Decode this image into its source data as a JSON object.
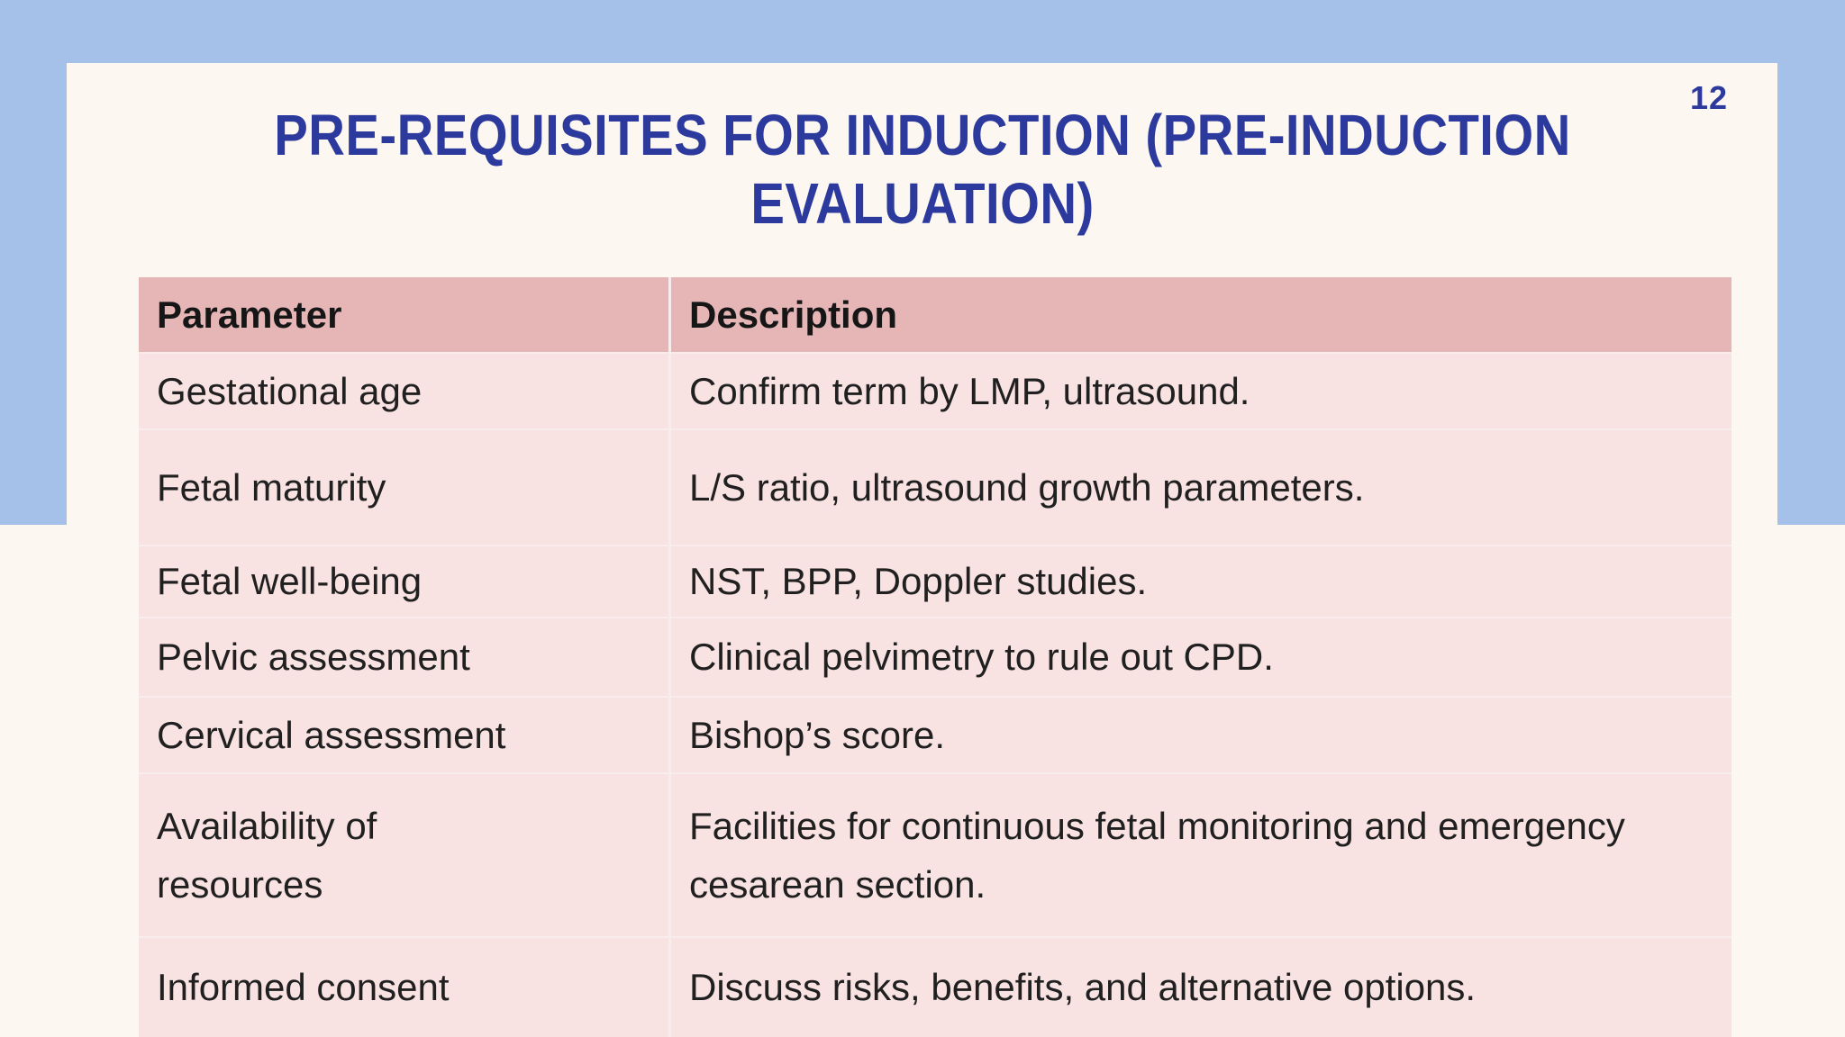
{
  "slide": {
    "page_number": "12",
    "title": {
      "line1": "PRE-REQUISITES FOR INDUCTION (PRE-INDUCTION",
      "line2": "EVALUATION)"
    }
  },
  "table": {
    "headers": {
      "parameter": "Parameter",
      "description": "Description"
    },
    "rows": [
      {
        "parameter": "Gestational age",
        "description": "Confirm term by LMP, ultrasound."
      },
      {
        "parameter": "Fetal maturity",
        "description": "L/S ratio, ultrasound growth parameters."
      },
      {
        "parameter": "Fetal well-being",
        "description": "NST, BPP, Doppler studies."
      },
      {
        "parameter": "Pelvic assessment",
        "description": "Clinical pelvimetry to rule out CPD."
      },
      {
        "parameter": "Cervical assessment",
        "description": "Bishop’s score."
      },
      {
        "parameter": "Availability of resources",
        "description": "Facilities for continuous fetal monitoring and emergency cesarean section."
      },
      {
        "parameter": "Informed consent",
        "description": "Discuss risks, benefits, and alternative options."
      }
    ]
  },
  "colors": {
    "frame_blue": "#a5c1ea",
    "page_cream": "#fdf7f2",
    "title_blue": "#2c3a9e",
    "header_pink": "#e6b5b6",
    "row_pink": "#f9e2e2",
    "cell_border": "#f8edec",
    "text_dark": "#202020"
  }
}
